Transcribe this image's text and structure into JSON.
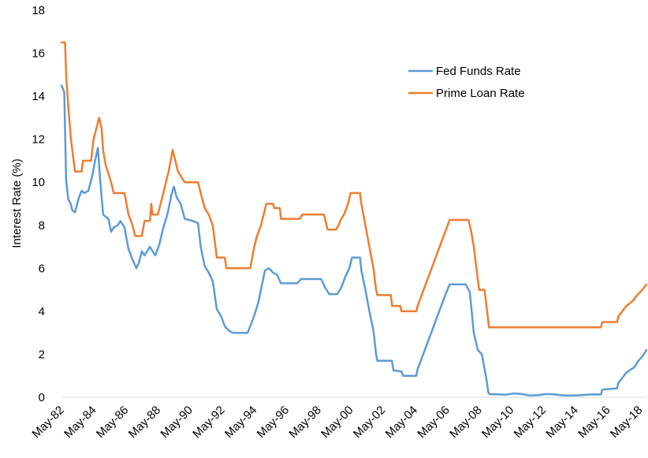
{
  "chart_data": {
    "type": "line",
    "title": "",
    "xlabel": "",
    "ylabel": "Interest Rate (%)",
    "ylim": [
      0,
      18
    ],
    "yticks": [
      0,
      2,
      4,
      6,
      8,
      10,
      12,
      14,
      16,
      18
    ],
    "xlim": [
      1982.33,
      2018.75
    ],
    "xtick_labels": [
      "May-82",
      "May-84",
      "May-86",
      "May-88",
      "May-90",
      "May-92",
      "May-94",
      "May-96",
      "May-98",
      "May-00",
      "May-02",
      "May-04",
      "May-06",
      "May-08",
      "May-10",
      "May-12",
      "May-14",
      "May-16",
      "May-18"
    ],
    "grid": false,
    "legend_position": "top-right",
    "series": [
      {
        "name": "Fed Funds Rate",
        "color": "#5b9bd5",
        "points": [
          [
            1982.33,
            14.5
          ],
          [
            1982.5,
            14.2
          ],
          [
            1982.62,
            10.1
          ],
          [
            1982.75,
            9.2
          ],
          [
            1982.9,
            9.0
          ],
          [
            1983.0,
            8.7
          ],
          [
            1983.17,
            8.6
          ],
          [
            1983.42,
            9.3
          ],
          [
            1983.58,
            9.6
          ],
          [
            1983.75,
            9.5
          ],
          [
            1984.0,
            9.6
          ],
          [
            1984.25,
            10.3
          ],
          [
            1984.42,
            11.0
          ],
          [
            1984.6,
            11.6
          ],
          [
            1984.75,
            10.0
          ],
          [
            1984.92,
            8.5
          ],
          [
            1985.08,
            8.4
          ],
          [
            1985.25,
            8.3
          ],
          [
            1985.42,
            7.7
          ],
          [
            1985.58,
            7.9
          ],
          [
            1985.83,
            8.0
          ],
          [
            1986.0,
            8.2
          ],
          [
            1986.25,
            7.9
          ],
          [
            1986.5,
            6.9
          ],
          [
            1986.75,
            6.4
          ],
          [
            1987.0,
            6.0
          ],
          [
            1987.17,
            6.3
          ],
          [
            1987.33,
            6.8
          ],
          [
            1987.5,
            6.6
          ],
          [
            1987.67,
            6.8
          ],
          [
            1987.83,
            7.0
          ],
          [
            1988.0,
            6.8
          ],
          [
            1988.17,
            6.6
          ],
          [
            1988.42,
            7.1
          ],
          [
            1988.67,
            7.9
          ],
          [
            1988.92,
            8.5
          ],
          [
            1989.17,
            9.4
          ],
          [
            1989.33,
            9.8
          ],
          [
            1989.5,
            9.3
          ],
          [
            1989.75,
            9.0
          ],
          [
            1990.0,
            8.3
          ],
          [
            1990.5,
            8.2
          ],
          [
            1990.83,
            8.1
          ],
          [
            1991.0,
            7.0
          ],
          [
            1991.25,
            6.1
          ],
          [
            1991.5,
            5.8
          ],
          [
            1991.75,
            5.4
          ],
          [
            1992.0,
            4.1
          ],
          [
            1992.25,
            3.8
          ],
          [
            1992.5,
            3.3
          ],
          [
            1992.75,
            3.1
          ],
          [
            1993.0,
            3.0
          ],
          [
            1993.5,
            3.0
          ],
          [
            1993.92,
            3.0
          ],
          [
            1994.08,
            3.3
          ],
          [
            1994.33,
            3.8
          ],
          [
            1994.58,
            4.4
          ],
          [
            1994.83,
            5.3
          ],
          [
            1995.0,
            5.9
          ],
          [
            1995.25,
            6.0
          ],
          [
            1995.5,
            5.8
          ],
          [
            1995.75,
            5.7
          ],
          [
            1996.0,
            5.3
          ],
          [
            1996.5,
            5.3
          ],
          [
            1997.0,
            5.3
          ],
          [
            1997.25,
            5.5
          ],
          [
            1997.5,
            5.5
          ],
          [
            1998.0,
            5.5
          ],
          [
            1998.5,
            5.5
          ],
          [
            1998.75,
            5.1
          ],
          [
            1999.0,
            4.8
          ],
          [
            1999.5,
            4.8
          ],
          [
            1999.75,
            5.1
          ],
          [
            2000.0,
            5.6
          ],
          [
            2000.25,
            6.0
          ],
          [
            2000.42,
            6.5
          ],
          [
            2000.92,
            6.5
          ],
          [
            2001.0,
            5.9
          ],
          [
            2001.25,
            5.0
          ],
          [
            2001.5,
            4.0
          ],
          [
            2001.75,
            3.1
          ],
          [
            2001.92,
            2.0
          ],
          [
            2002.0,
            1.7
          ],
          [
            2002.5,
            1.7
          ],
          [
            2002.9,
            1.7
          ],
          [
            2003.0,
            1.25
          ],
          [
            2003.5,
            1.2
          ],
          [
            2003.6,
            1.0
          ],
          [
            2004.42,
            1.0
          ],
          [
            2004.5,
            1.3
          ],
          [
            2004.75,
            1.8
          ],
          [
            2005.0,
            2.3
          ],
          [
            2005.25,
            2.8
          ],
          [
            2005.5,
            3.3
          ],
          [
            2005.75,
            3.8
          ],
          [
            2006.0,
            4.3
          ],
          [
            2006.25,
            4.8
          ],
          [
            2006.5,
            5.25
          ],
          [
            2007.5,
            5.25
          ],
          [
            2007.75,
            4.9
          ],
          [
            2008.0,
            3.0
          ],
          [
            2008.25,
            2.2
          ],
          [
            2008.5,
            2.0
          ],
          [
            2008.75,
            1.0
          ],
          [
            2008.92,
            0.2
          ],
          [
            2009.0,
            0.15
          ],
          [
            2010.0,
            0.12
          ],
          [
            2010.5,
            0.18
          ],
          [
            2011.0,
            0.15
          ],
          [
            2011.5,
            0.08
          ],
          [
            2012.0,
            0.1
          ],
          [
            2012.5,
            0.15
          ],
          [
            2013.0,
            0.14
          ],
          [
            2013.5,
            0.09
          ],
          [
            2014.0,
            0.08
          ],
          [
            2014.5,
            0.09
          ],
          [
            2015.0,
            0.12
          ],
          [
            2015.5,
            0.14
          ],
          [
            2015.92,
            0.13
          ],
          [
            2016.0,
            0.36
          ],
          [
            2016.5,
            0.39
          ],
          [
            2016.92,
            0.41
          ],
          [
            2017.0,
            0.66
          ],
          [
            2017.25,
            0.9
          ],
          [
            2017.5,
            1.15
          ],
          [
            2018.0,
            1.4
          ],
          [
            2018.25,
            1.7
          ],
          [
            2018.5,
            1.9
          ],
          [
            2018.75,
            2.2
          ]
        ]
      },
      {
        "name": "Prime Loan Rate",
        "color": "#ed7d31",
        "points": [
          [
            1982.33,
            16.5
          ],
          [
            1982.55,
            16.5
          ],
          [
            1982.62,
            15.0
          ],
          [
            1982.75,
            13.5
          ],
          [
            1982.92,
            12.0
          ],
          [
            1983.0,
            11.5
          ],
          [
            1983.17,
            10.5
          ],
          [
            1983.58,
            10.5
          ],
          [
            1983.67,
            11.0
          ],
          [
            1984.17,
            11.0
          ],
          [
            1984.33,
            12.0
          ],
          [
            1984.5,
            12.5
          ],
          [
            1984.67,
            13.0
          ],
          [
            1984.83,
            12.5
          ],
          [
            1984.92,
            11.5
          ],
          [
            1985.08,
            10.8
          ],
          [
            1985.42,
            10.0
          ],
          [
            1985.58,
            9.5
          ],
          [
            1986.25,
            9.5
          ],
          [
            1986.5,
            8.5
          ],
          [
            1986.75,
            8.0
          ],
          [
            1986.92,
            7.5
          ],
          [
            1987.33,
            7.5
          ],
          [
            1987.5,
            8.2
          ],
          [
            1987.83,
            8.2
          ],
          [
            1987.92,
            9.0
          ],
          [
            1988.0,
            8.5
          ],
          [
            1988.33,
            8.5
          ],
          [
            1988.5,
            9.0
          ],
          [
            1988.67,
            9.5
          ],
          [
            1988.83,
            10.0
          ],
          [
            1989.0,
            10.5
          ],
          [
            1989.25,
            11.5
          ],
          [
            1989.42,
            11.0
          ],
          [
            1989.58,
            10.5
          ],
          [
            1990.0,
            10.0
          ],
          [
            1990.83,
            10.0
          ],
          [
            1991.0,
            9.5
          ],
          [
            1991.25,
            8.8
          ],
          [
            1991.5,
            8.5
          ],
          [
            1991.75,
            8.0
          ],
          [
            1992.0,
            6.5
          ],
          [
            1992.5,
            6.5
          ],
          [
            1992.6,
            6.0
          ],
          [
            1994.08,
            6.0
          ],
          [
            1994.33,
            7.0
          ],
          [
            1994.5,
            7.5
          ],
          [
            1994.75,
            8.0
          ],
          [
            1994.92,
            8.5
          ],
          [
            1995.08,
            9.0
          ],
          [
            1995.5,
            9.0
          ],
          [
            1995.58,
            8.8
          ],
          [
            1995.92,
            8.8
          ],
          [
            1996.0,
            8.3
          ],
          [
            1997.17,
            8.3
          ],
          [
            1997.33,
            8.5
          ],
          [
            1998.67,
            8.5
          ],
          [
            1998.83,
            8.0
          ],
          [
            1998.9,
            7.8
          ],
          [
            1999.42,
            7.8
          ],
          [
            1999.58,
            8.0
          ],
          [
            1999.75,
            8.3
          ],
          [
            1999.92,
            8.5
          ],
          [
            2000.17,
            9.0
          ],
          [
            2000.33,
            9.5
          ],
          [
            2000.92,
            9.5
          ],
          [
            2001.0,
            9.0
          ],
          [
            2001.25,
            8.0
          ],
          [
            2001.5,
            7.0
          ],
          [
            2001.75,
            6.0
          ],
          [
            2001.92,
            5.0
          ],
          [
            2002.0,
            4.75
          ],
          [
            2002.83,
            4.75
          ],
          [
            2002.92,
            4.25
          ],
          [
            2003.42,
            4.25
          ],
          [
            2003.5,
            4.0
          ],
          [
            2004.42,
            4.0
          ],
          [
            2004.5,
            4.25
          ],
          [
            2004.75,
            4.75
          ],
          [
            2005.0,
            5.25
          ],
          [
            2005.25,
            5.75
          ],
          [
            2005.5,
            6.25
          ],
          [
            2005.75,
            6.75
          ],
          [
            2006.0,
            7.25
          ],
          [
            2006.25,
            7.75
          ],
          [
            2006.5,
            8.25
          ],
          [
            2007.67,
            8.25
          ],
          [
            2007.83,
            7.75
          ],
          [
            2008.0,
            7.0
          ],
          [
            2008.17,
            6.0
          ],
          [
            2008.33,
            5.0
          ],
          [
            2008.67,
            5.0
          ],
          [
            2008.83,
            4.0
          ],
          [
            2008.95,
            3.25
          ],
          [
            2015.92,
            3.25
          ],
          [
            2016.0,
            3.5
          ],
          [
            2016.92,
            3.5
          ],
          [
            2017.0,
            3.75
          ],
          [
            2017.25,
            4.0
          ],
          [
            2017.5,
            4.25
          ],
          [
            2017.92,
            4.5
          ],
          [
            2018.17,
            4.75
          ],
          [
            2018.5,
            5.0
          ],
          [
            2018.75,
            5.25
          ]
        ]
      }
    ]
  }
}
